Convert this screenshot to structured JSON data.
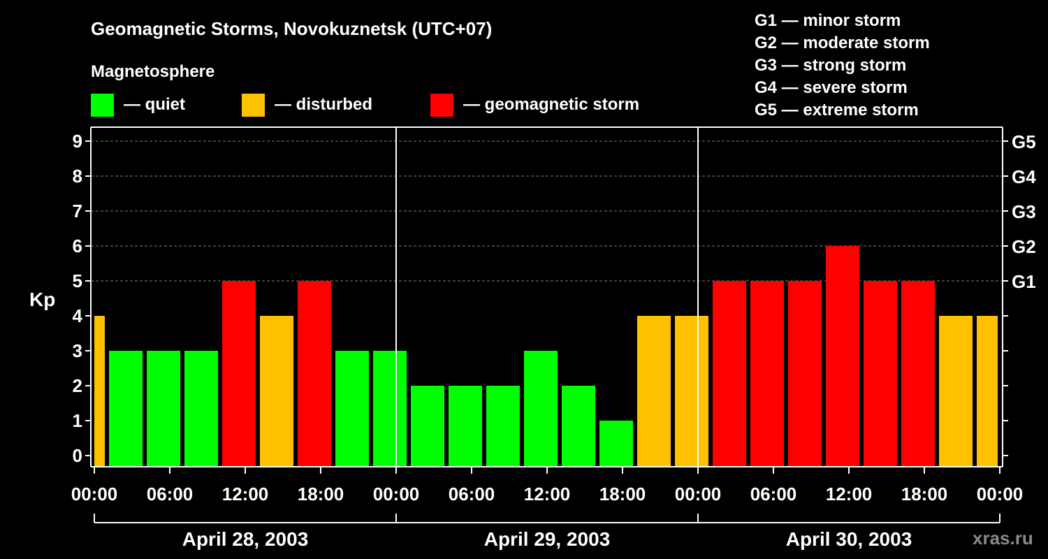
{
  "title": "Geomagnetic Storms, Novokuznetsk (UTC+07)",
  "legend": {
    "heading": "Magnetosphere",
    "items": [
      {
        "label": "— quiet",
        "color": "#00ff00"
      },
      {
        "label": "— disturbed",
        "color": "#ffc000"
      },
      {
        "label": "— geomagnetic storm",
        "color": "#ff0000"
      }
    ],
    "scale": [
      "G1 — minor storm",
      "G2 — moderate storm",
      "G3 — strong storm",
      "G4 — severe storm",
      "G5 — extreme storm"
    ]
  },
  "watermark": "xras.ru",
  "chart_data": {
    "type": "bar",
    "title": "Geomagnetic Storms, Novokuznetsk (UTC+07)",
    "ylabel": "Kp",
    "ylim": [
      0,
      9
    ],
    "yticks": [
      "0",
      "1",
      "2",
      "3",
      "4",
      "5",
      "6",
      "7",
      "8",
      "9"
    ],
    "right_ticks": [
      {
        "kp": 5,
        "label": "G1"
      },
      {
        "kp": 6,
        "label": "G2"
      },
      {
        "kp": 7,
        "label": "G3"
      },
      {
        "kp": 8,
        "label": "G4"
      },
      {
        "kp": 9,
        "label": "G5"
      }
    ],
    "xtick_labels": [
      "00:00",
      "06:00",
      "12:00",
      "18:00",
      "00:00",
      "06:00",
      "12:00",
      "18:00",
      "00:00",
      "06:00",
      "12:00",
      "18:00",
      "00:00"
    ],
    "days": [
      "April 28, 2003",
      "April 29, 2003",
      "April 30, 2003"
    ],
    "bin_hours": 3,
    "bin_start_hours": [
      -2,
      1,
      4,
      7,
      10,
      13,
      16,
      19,
      22,
      25,
      28,
      31,
      34,
      37,
      40,
      43,
      46,
      49,
      52,
      55,
      58,
      61,
      64,
      67,
      70
    ],
    "values": [
      4,
      3,
      3,
      3,
      5,
      4,
      5,
      3,
      3,
      2,
      2,
      2,
      3,
      2,
      1,
      4,
      4,
      5,
      5,
      5,
      6,
      5,
      5,
      4,
      4
    ],
    "colors": {
      "quiet": "#00ff00",
      "disturbed": "#ffc000",
      "storm": "#ff0000"
    },
    "grid": "dashed at Kp 5-9"
  }
}
